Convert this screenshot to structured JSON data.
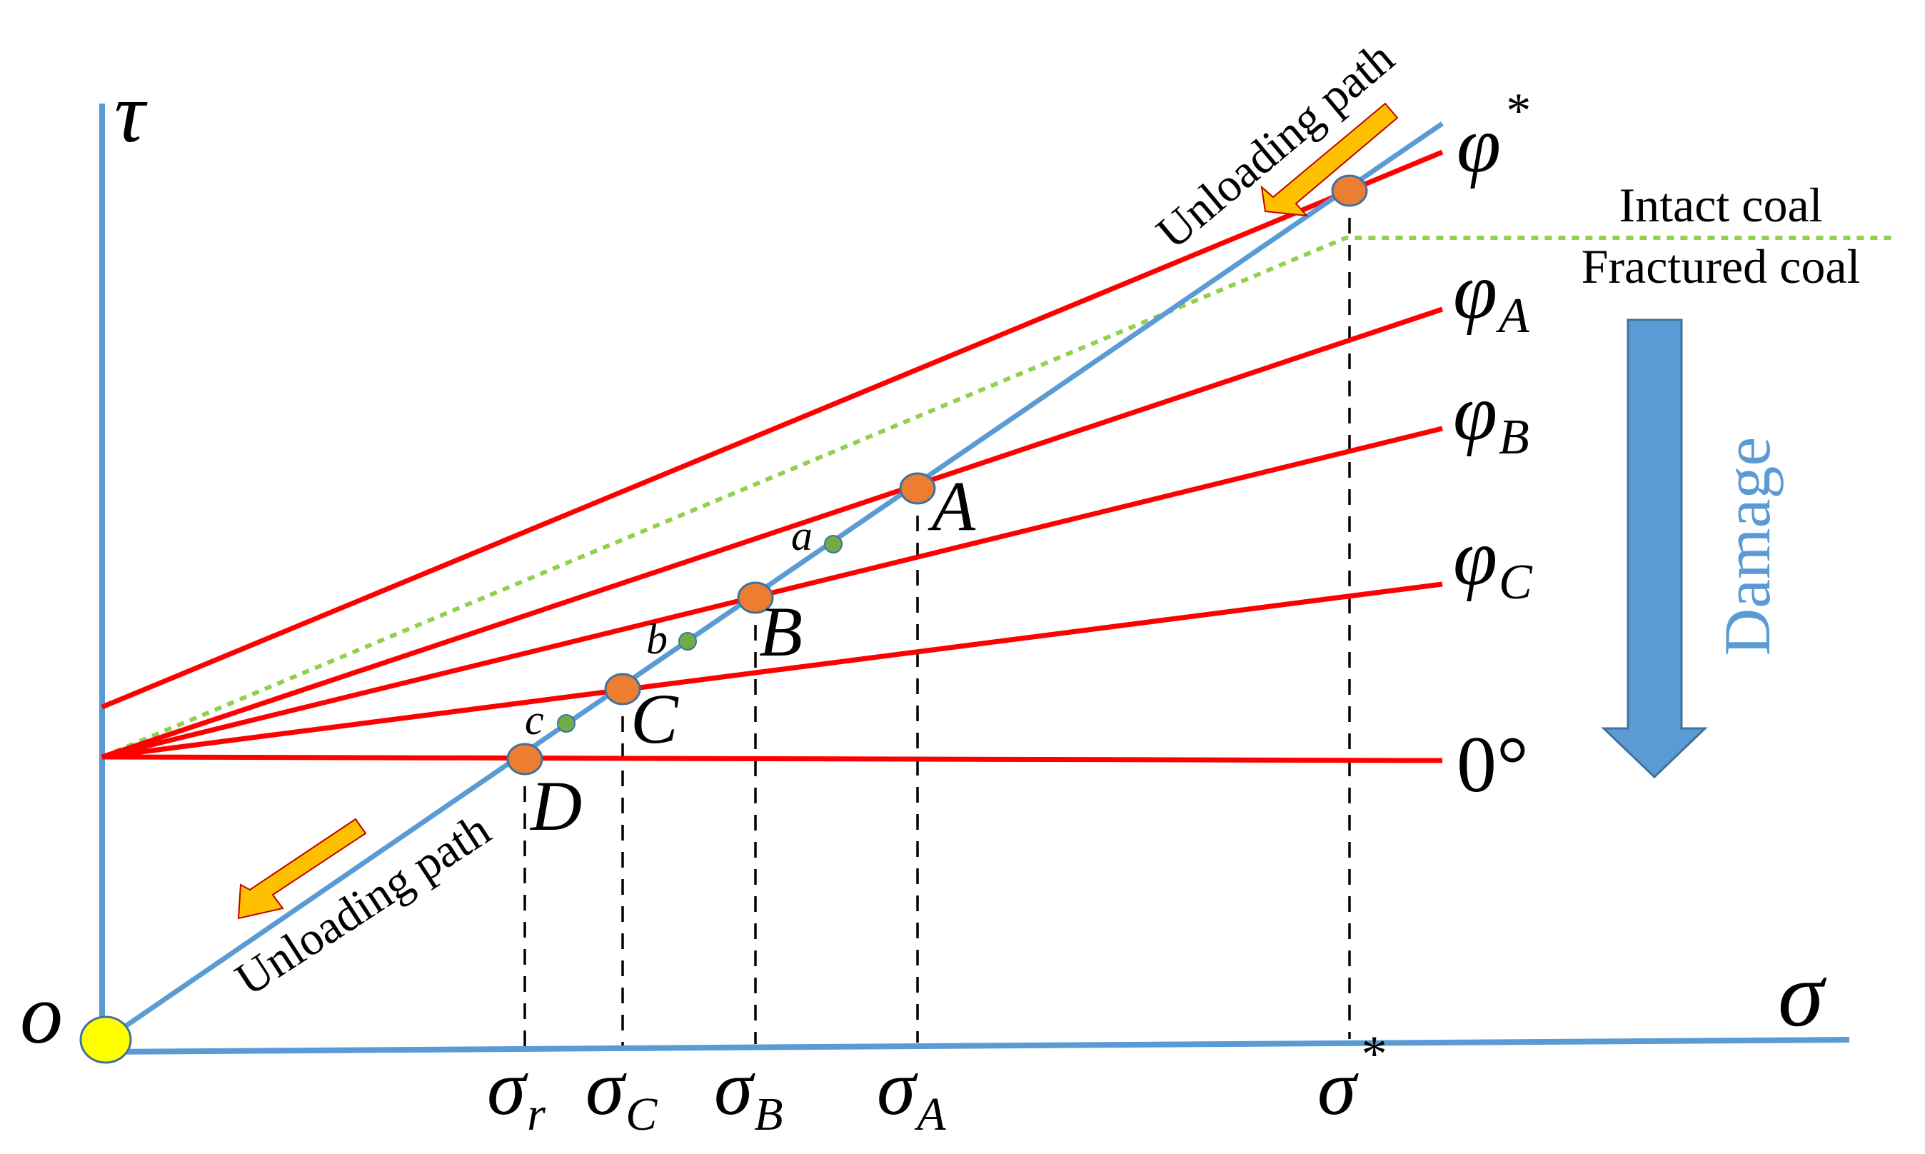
{
  "axes": {
    "y_label": "τ",
    "x_label": "σ",
    "origin_label": "o"
  },
  "envelopes": [
    {
      "label": "φ",
      "sup": "*",
      "sub": ""
    },
    {
      "label": "φ",
      "sup": "",
      "sub": "A"
    },
    {
      "label": "φ",
      "sup": "",
      "sub": "B"
    },
    {
      "label": "φ",
      "sup": "",
      "sub": "C"
    },
    {
      "label": "0°",
      "sup": "",
      "sub": ""
    }
  ],
  "points": [
    {
      "label": "A"
    },
    {
      "label": "B"
    },
    {
      "label": "C"
    },
    {
      "label": "D"
    }
  ],
  "minor_points": [
    {
      "label": "a"
    },
    {
      "label": "b"
    },
    {
      "label": "c"
    }
  ],
  "stress_ticks": [
    {
      "main": "σ",
      "sub": "r",
      "sup": ""
    },
    {
      "main": "σ",
      "sub": "C",
      "sup": ""
    },
    {
      "main": "σ",
      "sub": "B",
      "sup": ""
    },
    {
      "main": "σ",
      "sub": "A",
      "sup": ""
    },
    {
      "main": "σ",
      "sub": "",
      "sup": "*"
    }
  ],
  "path_labels": {
    "upper": "Unloading path",
    "lower": "Unloading path"
  },
  "regions": {
    "intact": "Intact coal",
    "fractured": "Fractured coal"
  },
  "damage_label": "Damage",
  "colors": {
    "axis": "#5b9bd5",
    "path": "#5b9bd5",
    "envelope": "#ff0000",
    "boundary": "#92d050",
    "point": "#ed7d31",
    "minor_point": "#70ad47",
    "origin_point": "#ffff00",
    "arrow": "#ffc000",
    "damage_arrow": "#5b9bd5",
    "text": "#000000"
  }
}
